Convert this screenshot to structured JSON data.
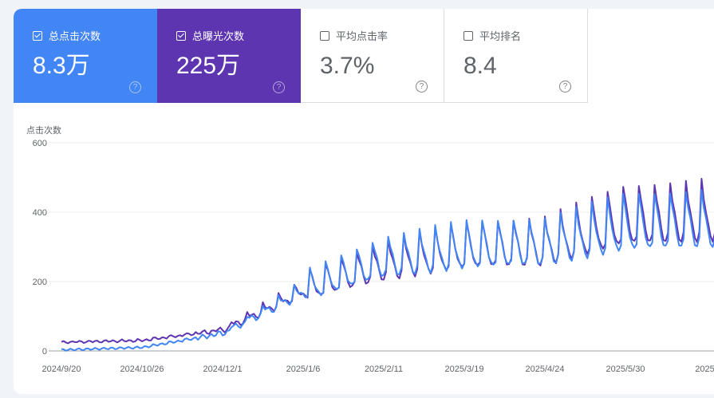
{
  "cards": [
    {
      "label": "总点击次数",
      "value": "8.3万",
      "checked": true,
      "color": "#4285f4"
    },
    {
      "label": "总曝光次数",
      "value": "225万",
      "checked": true,
      "color": "#5e35b1"
    },
    {
      "label": "平均点击率",
      "value": "3.7%",
      "checked": false,
      "color": "#ffffff"
    },
    {
      "label": "平均排名",
      "value": "8.4",
      "checked": false,
      "color": "#ffffff"
    }
  ],
  "help_glyph": "?",
  "chart_data": {
    "type": "line",
    "ylabel": "点击次数",
    "ylim": [
      0,
      600
    ],
    "yticks": [
      0,
      200,
      400,
      600
    ],
    "xticks": [
      "2024/9/20",
      "2024/10/26",
      "2024/12/1",
      "2025/1/6",
      "2025/2/11",
      "2025/3/19",
      "2025/4/24",
      "2025/5/30",
      "2025/"
    ],
    "grid": true,
    "legend": "none",
    "series": [
      {
        "name": "总曝光次数",
        "color": "#5e35b1",
        "monthly_approx": {
          "2024/9/20": 25,
          "2024/10/26": 30,
          "2024/12/1": 60,
          "2025/1/6": 170,
          "2025/2/11": 240,
          "2025/3/19": 280,
          "2025/4/24": 290,
          "2025/5/30": 360
        },
        "weekly_peaks": [
          null,
          null,
          125,
          200,
          330,
          360,
          450,
          360,
          510,
          530,
          450
        ]
      },
      {
        "name": "总点击次数",
        "color": "#4285f4",
        "monthly_approx": {
          "2024/9/20": 3,
          "2024/10/26": 10,
          "2024/12/1": 50,
          "2025/1/6": 170,
          "2025/2/11": 250,
          "2025/3/19": 280,
          "2025/4/24": 290,
          "2025/5/30": 340
        },
        "weekly_peaks": [
          null,
          null,
          140,
          200,
          430,
          350,
          505,
          380,
          490,
          565,
          430
        ]
      }
    ]
  }
}
